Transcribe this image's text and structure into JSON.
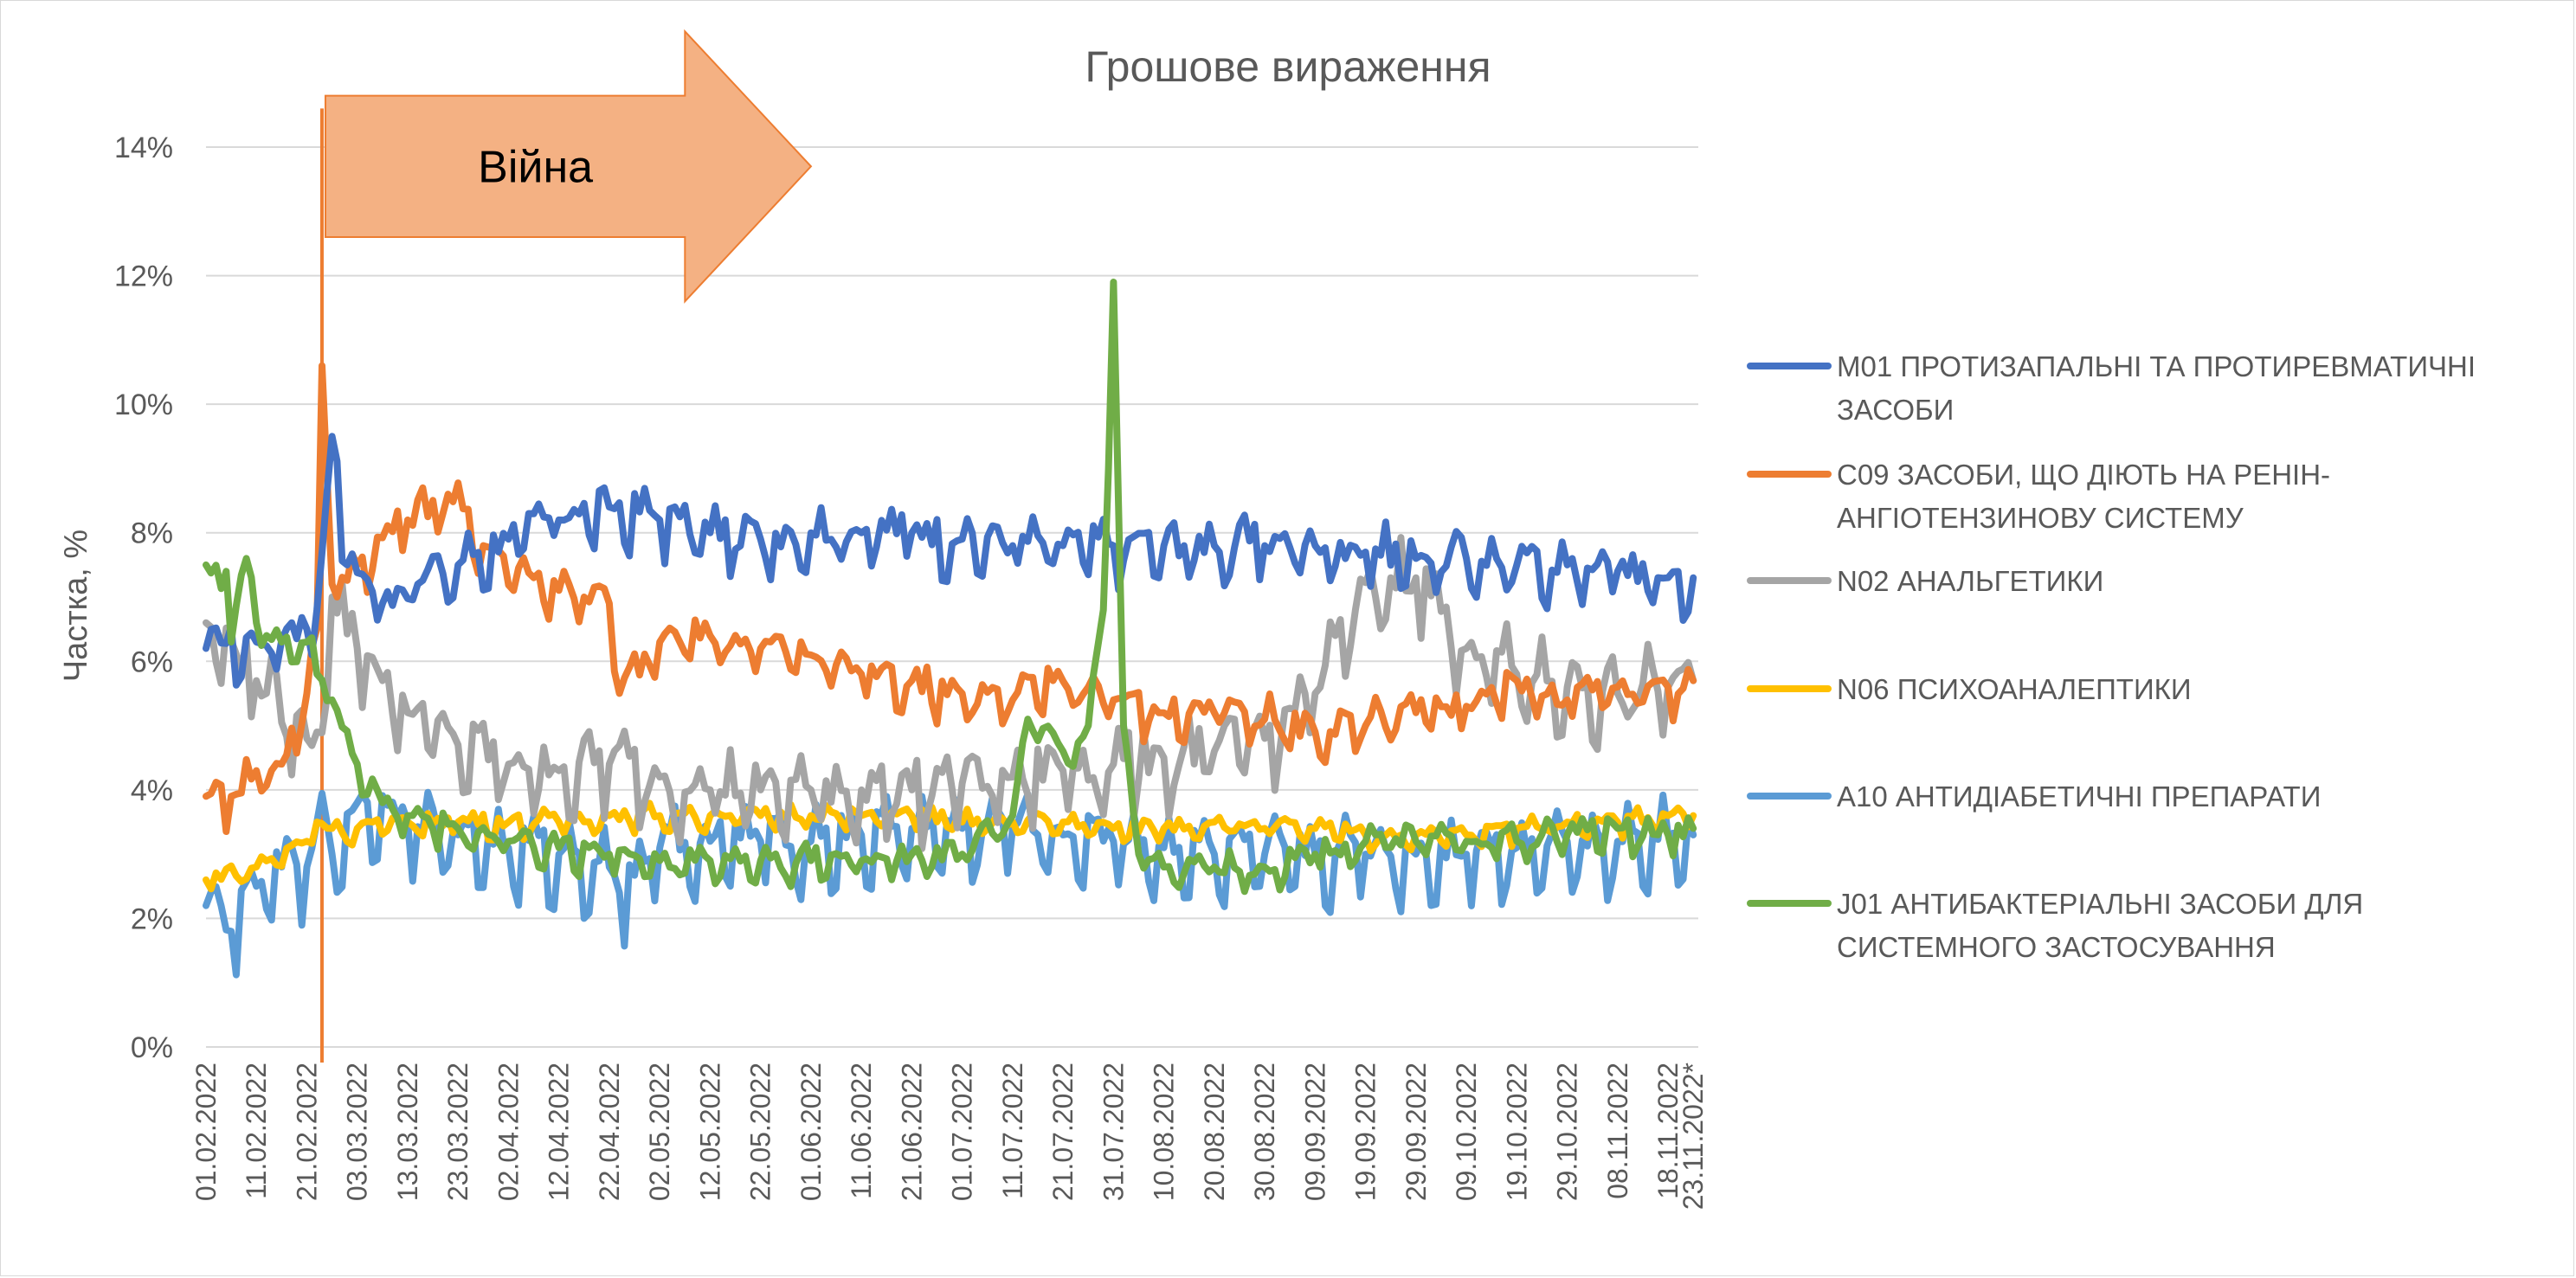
{
  "chart_data": {
    "type": "line",
    "title": "Грошове вираження",
    "ylabel": "Частка, %",
    "xlabel": "",
    "ylim": [
      0,
      14
    ],
    "y_ticks": [
      0,
      2,
      4,
      6,
      8,
      10,
      12,
      14
    ],
    "y_tick_labels": [
      "0%",
      "2%",
      "4%",
      "6%",
      "8%",
      "10%",
      "12%",
      "14%"
    ],
    "grid": true,
    "legend_position": "right",
    "x_tick_labels": [
      "01.02.2022",
      "11.02.2022",
      "21.02.2022",
      "03.03.2022",
      "13.03.2022",
      "23.03.2022",
      "02.04.2022",
      "12.04.2022",
      "22.04.2022",
      "02.05.2022",
      "12.05.2022",
      "22.05.2022",
      "01.06.2022",
      "11.06.2022",
      "21.06.2022",
      "01.07.2022",
      "11.07.2022",
      "21.07.2022",
      "31.07.2022",
      "10.08.2022",
      "20.08.2022",
      "30.08.2022",
      "09.09.2022",
      "19.09.2022",
      "29.09.2022",
      "09.10.2022",
      "19.10.2022",
      "29.10.2022",
      "08.11.2022",
      "18.11.2022",
      "23.11.2022*"
    ],
    "x_tick_positions": [
      0,
      10,
      20,
      30,
      40,
      50,
      60,
      70,
      80,
      90,
      100,
      110,
      120,
      130,
      140,
      150,
      160,
      170,
      180,
      190,
      200,
      210,
      220,
      230,
      240,
      250,
      260,
      270,
      280,
      290,
      295
    ],
    "x_range": [
      0,
      296
    ],
    "annotation": {
      "text": "Війна",
      "x": 23,
      "y_bottom": 0,
      "y_top": 14.6,
      "arrow_x_end": 120,
      "arrow_y_top": 15.8,
      "arrow_y_bottom": 11.6,
      "arrow_shaft_top": 14.8,
      "arrow_shaft_bottom": 12.6,
      "arrow_head_start": 95,
      "line_color": "#ED7D31",
      "fill_color": "#F4B183"
    },
    "series": [
      {
        "name": "M01 ПРОТИЗАПАЛЬНІ ТА ПРОТИРЕВМАТИЧНІ ЗАСОБИ",
        "color": "#4472C4",
        "points": [
          [
            0,
            6.2
          ],
          [
            10,
            6.3
          ],
          [
            20,
            6.5
          ],
          [
            22,
            6.8
          ],
          [
            25,
            9.5
          ],
          [
            28,
            7.5
          ],
          [
            35,
            6.9
          ],
          [
            42,
            7.2
          ],
          [
            50,
            7.5
          ],
          [
            60,
            7.9
          ],
          [
            70,
            8.2
          ],
          [
            80,
            8.4
          ],
          [
            90,
            8.2
          ],
          [
            100,
            8.0
          ],
          [
            110,
            7.9
          ],
          [
            120,
            8.0
          ],
          [
            130,
            8.0
          ],
          [
            140,
            8.0
          ],
          [
            150,
            7.9
          ],
          [
            160,
            7.8
          ],
          [
            170,
            7.8
          ],
          [
            180,
            7.8
          ],
          [
            190,
            7.8
          ],
          [
            200,
            7.8
          ],
          [
            210,
            7.8
          ],
          [
            220,
            7.8
          ],
          [
            230,
            7.7
          ],
          [
            240,
            7.6
          ],
          [
            250,
            7.6
          ],
          [
            260,
            7.5
          ],
          [
            270,
            7.5
          ],
          [
            280,
            7.4
          ],
          [
            290,
            7.3
          ],
          [
            295,
            7.3
          ]
        ],
        "amp": 0.45,
        "noise": 0.5
      },
      {
        "name": "C09 ЗАСОБИ, ЩО ДІЮТЬ НА РЕНІН-АНГІОТЕНЗИНОВУ СИСТЕМУ",
        "color": "#ED7D31",
        "points": [
          [
            0,
            3.9
          ],
          [
            5,
            3.9
          ],
          [
            10,
            4.3
          ],
          [
            15,
            4.4
          ],
          [
            20,
            5.5
          ],
          [
            22,
            6.5
          ],
          [
            23,
            10.6
          ],
          [
            25,
            7.2
          ],
          [
            30,
            7.5
          ],
          [
            40,
            8.2
          ],
          [
            48,
            8.6
          ],
          [
            55,
            7.8
          ],
          [
            65,
            7.3
          ],
          [
            75,
            7.0
          ],
          [
            80,
            6.9
          ],
          [
            82,
            5.5
          ],
          [
            90,
            6.3
          ],
          [
            100,
            6.4
          ],
          [
            110,
            6.2
          ],
          [
            120,
            6.1
          ],
          [
            130,
            5.8
          ],
          [
            140,
            5.7
          ],
          [
            150,
            5.5
          ],
          [
            160,
            5.4
          ],
          [
            168,
            5.7
          ],
          [
            175,
            5.6
          ],
          [
            180,
            5.4
          ],
          [
            190,
            5.2
          ],
          [
            200,
            5.2
          ],
          [
            210,
            5.1
          ],
          [
            220,
            4.9
          ],
          [
            230,
            5.0
          ],
          [
            240,
            5.2
          ],
          [
            250,
            5.3
          ],
          [
            260,
            5.7
          ],
          [
            270,
            5.4
          ],
          [
            280,
            5.6
          ],
          [
            290,
            5.6
          ],
          [
            295,
            5.7
          ]
        ],
        "amp": 0.35,
        "noise": 0.45
      },
      {
        "name": "N02 АНАЛЬГЕТИКИ",
        "color": "#A5A5A5",
        "points": [
          [
            0,
            6.6
          ],
          [
            10,
            5.7
          ],
          [
            20,
            4.8
          ],
          [
            22,
            4.9
          ],
          [
            25,
            7.0
          ],
          [
            30,
            6.2
          ],
          [
            40,
            5.2
          ],
          [
            50,
            4.7
          ],
          [
            60,
            4.4
          ],
          [
            70,
            4.3
          ],
          [
            80,
            4.4
          ],
          [
            90,
            4.2
          ],
          [
            100,
            4.0
          ],
          [
            110,
            4.0
          ],
          [
            120,
            4.0
          ],
          [
            130,
            4.0
          ],
          [
            140,
            4.0
          ],
          [
            150,
            4.1
          ],
          [
            160,
            4.2
          ],
          [
            170,
            4.3
          ],
          [
            180,
            4.4
          ],
          [
            190,
            4.5
          ],
          [
            200,
            4.6
          ],
          [
            210,
            4.8
          ],
          [
            220,
            5.5
          ],
          [
            228,
            6.8
          ],
          [
            235,
            7.3
          ],
          [
            240,
            7.3
          ],
          [
            250,
            6.2
          ],
          [
            260,
            5.8
          ],
          [
            270,
            5.6
          ],
          [
            280,
            5.5
          ],
          [
            290,
            5.6
          ],
          [
            295,
            5.7
          ]
        ],
        "amp": 0.6,
        "noise": 0.7
      },
      {
        "name": "N06 ПСИХОАНАЛЕПТИКИ",
        "color": "#FFC000",
        "points": [
          [
            0,
            2.6
          ],
          [
            10,
            2.8
          ],
          [
            20,
            3.2
          ],
          [
            22,
            3.5
          ],
          [
            25,
            3.4
          ],
          [
            30,
            3.4
          ],
          [
            40,
            3.5
          ],
          [
            50,
            3.5
          ],
          [
            60,
            3.5
          ],
          [
            70,
            3.5
          ],
          [
            80,
            3.6
          ],
          [
            90,
            3.6
          ],
          [
            100,
            3.6
          ],
          [
            110,
            3.6
          ],
          [
            120,
            3.6
          ],
          [
            130,
            3.6
          ],
          [
            140,
            3.6
          ],
          [
            150,
            3.5
          ],
          [
            160,
            3.5
          ],
          [
            170,
            3.5
          ],
          [
            180,
            3.4
          ],
          [
            190,
            3.4
          ],
          [
            200,
            3.5
          ],
          [
            210,
            3.4
          ],
          [
            220,
            3.4
          ],
          [
            230,
            3.3
          ],
          [
            240,
            3.3
          ],
          [
            250,
            3.3
          ],
          [
            260,
            3.4
          ],
          [
            270,
            3.5
          ],
          [
            280,
            3.5
          ],
          [
            290,
            3.6
          ],
          [
            295,
            3.6
          ]
        ],
        "amp": 0.18,
        "noise": 0.2
      },
      {
        "name": "A10 АНТИДІАБЕТИЧНІ ПРЕПАРАТИ",
        "color": "#5B9BD5",
        "points": [
          [
            0,
            2.2
          ],
          [
            5,
            1.8
          ],
          [
            10,
            2.5
          ],
          [
            15,
            2.8
          ],
          [
            20,
            2.8
          ],
          [
            22,
            3.5
          ],
          [
            25,
            3.0
          ],
          [
            30,
            3.8
          ],
          [
            40,
            3.5
          ],
          [
            50,
            3.3
          ],
          [
            60,
            3.1
          ],
          [
            70,
            3.0
          ],
          [
            80,
            2.8
          ],
          [
            82,
            2.4
          ],
          [
            90,
            3.1
          ],
          [
            100,
            3.2
          ],
          [
            110,
            3.2
          ],
          [
            120,
            3.2
          ],
          [
            130,
            3.3
          ],
          [
            140,
            3.4
          ],
          [
            150,
            3.4
          ],
          [
            160,
            3.4
          ],
          [
            170,
            3.3
          ],
          [
            180,
            3.2
          ],
          [
            190,
            3.1
          ],
          [
            200,
            3.0
          ],
          [
            210,
            3.0
          ],
          [
            220,
            3.0
          ],
          [
            230,
            3.0
          ],
          [
            240,
            3.0
          ],
          [
            250,
            3.0
          ],
          [
            260,
            3.1
          ],
          [
            270,
            3.2
          ],
          [
            280,
            3.2
          ],
          [
            290,
            3.3
          ],
          [
            295,
            3.3
          ]
        ],
        "amp": 0.7,
        "noise": 0.45
      },
      {
        "name": "J01 АНТИБАКТЕРІАЛЬНІ ЗАСОБИ ДЛЯ СИСТЕМНОГО ЗАСТОСУВАННЯ",
        "color": "#70AD47",
        "points": [
          [
            0,
            7.5
          ],
          [
            4,
            7.4
          ],
          [
            5,
            6.3
          ],
          [
            8,
            7.6
          ],
          [
            10,
            6.6
          ],
          [
            15,
            6.3
          ],
          [
            20,
            6.3
          ],
          [
            22,
            5.8
          ],
          [
            25,
            5.4
          ],
          [
            30,
            4.4
          ],
          [
            35,
            3.8
          ],
          [
            40,
            3.6
          ],
          [
            50,
            3.4
          ],
          [
            60,
            3.2
          ],
          [
            70,
            3.1
          ],
          [
            80,
            3.0
          ],
          [
            90,
            2.9
          ],
          [
            100,
            2.9
          ],
          [
            110,
            2.9
          ],
          [
            120,
            2.9
          ],
          [
            130,
            2.9
          ],
          [
            140,
            3.0
          ],
          [
            150,
            3.0
          ],
          [
            160,
            3.6
          ],
          [
            163,
            5.1
          ],
          [
            170,
            4.6
          ],
          [
            175,
            5.0
          ],
          [
            178,
            6.8
          ],
          [
            180,
            11.9
          ],
          [
            182,
            5.0
          ],
          [
            185,
            3.0
          ],
          [
            190,
            2.8
          ],
          [
            200,
            2.8
          ],
          [
            210,
            2.8
          ],
          [
            220,
            3.0
          ],
          [
            230,
            3.2
          ],
          [
            240,
            3.2
          ],
          [
            250,
            3.2
          ],
          [
            260,
            3.2
          ],
          [
            270,
            3.3
          ],
          [
            280,
            3.4
          ],
          [
            290,
            3.3
          ],
          [
            295,
            3.4
          ]
        ],
        "amp": 0.25,
        "noise": 0.35
      }
    ]
  }
}
